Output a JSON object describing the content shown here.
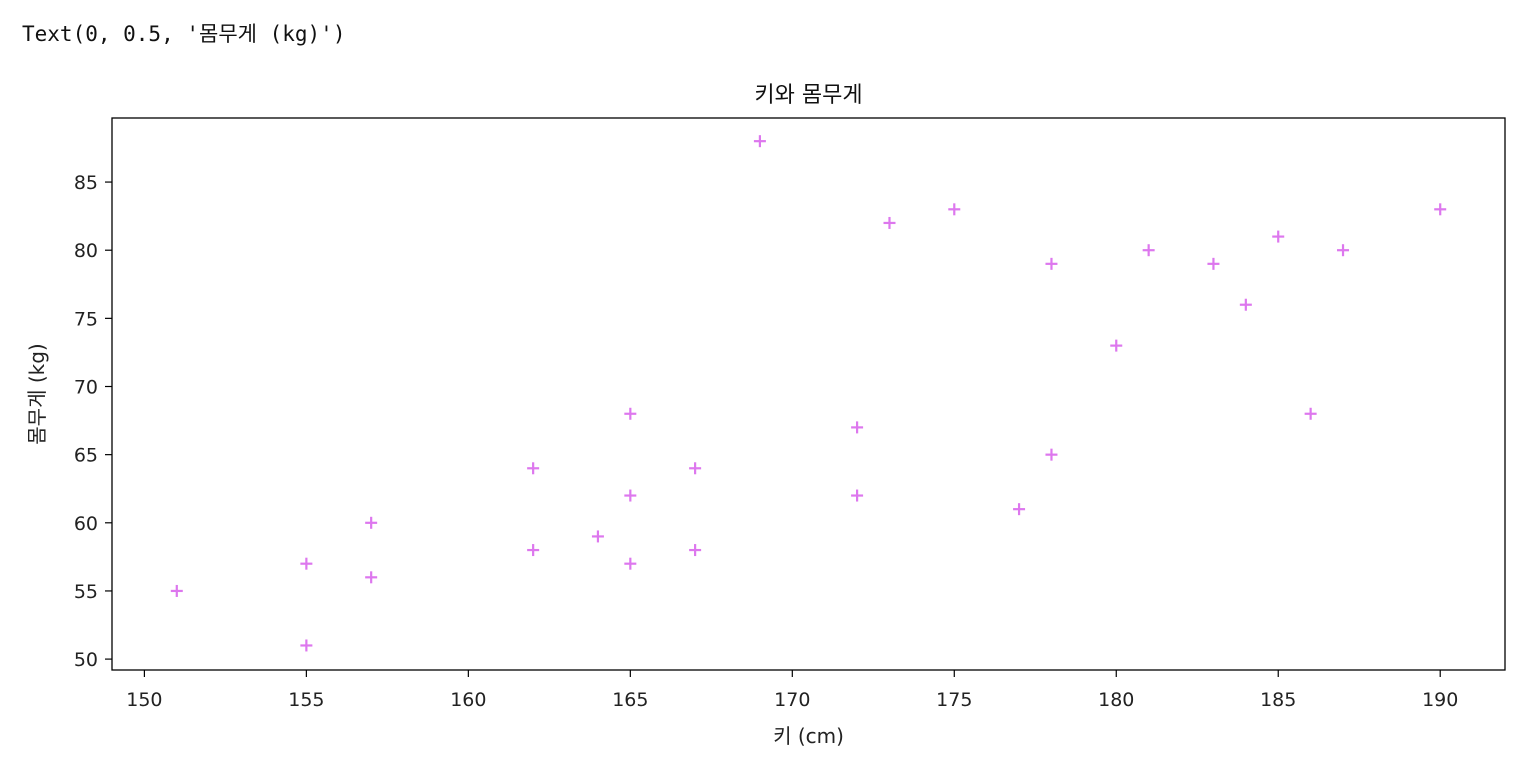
{
  "output": {
    "text": "Text(0, 0.5, '몸무게 (kg)')"
  },
  "chart_data": {
    "type": "scatter",
    "title": "키와 몸무게",
    "xlabel": "키 (cm)",
    "ylabel": "몸무게 (kg)",
    "xlim": [
      149,
      192
    ],
    "ylim": [
      49.2,
      89.7
    ],
    "xticks": [
      150,
      155,
      160,
      165,
      170,
      175,
      180,
      185,
      190
    ],
    "yticks": [
      50,
      55,
      60,
      65,
      70,
      75,
      80,
      85
    ],
    "grid": false,
    "marker": "+",
    "marker_color": "#dd77ee",
    "points": [
      {
        "x": 151,
        "y": 55
      },
      {
        "x": 155,
        "y": 57
      },
      {
        "x": 155,
        "y": 51
      },
      {
        "x": 157,
        "y": 60
      },
      {
        "x": 157,
        "y": 56
      },
      {
        "x": 162,
        "y": 64
      },
      {
        "x": 162,
        "y": 58
      },
      {
        "x": 164,
        "y": 59
      },
      {
        "x": 165,
        "y": 68
      },
      {
        "x": 165,
        "y": 62
      },
      {
        "x": 165,
        "y": 57
      },
      {
        "x": 167,
        "y": 64
      },
      {
        "x": 167,
        "y": 58
      },
      {
        "x": 169,
        "y": 88
      },
      {
        "x": 172,
        "y": 67
      },
      {
        "x": 172,
        "y": 62
      },
      {
        "x": 173,
        "y": 82
      },
      {
        "x": 175,
        "y": 83
      },
      {
        "x": 177,
        "y": 61
      },
      {
        "x": 178,
        "y": 79
      },
      {
        "x": 178,
        "y": 65
      },
      {
        "x": 180,
        "y": 73
      },
      {
        "x": 181,
        "y": 80
      },
      {
        "x": 183,
        "y": 79
      },
      {
        "x": 184,
        "y": 76
      },
      {
        "x": 185,
        "y": 81
      },
      {
        "x": 186,
        "y": 68
      },
      {
        "x": 187,
        "y": 80
      },
      {
        "x": 190,
        "y": 83
      }
    ]
  }
}
